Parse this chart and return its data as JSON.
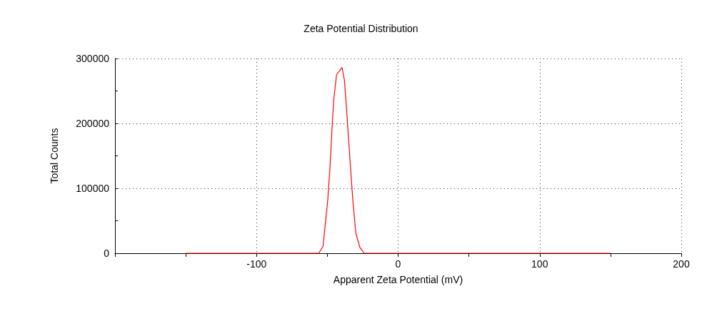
{
  "chart_data": {
    "type": "line",
    "title": "Zeta Potential Distribution",
    "xlabel": "Apparent Zeta Potential (mV)",
    "ylabel": "Total Counts",
    "x": [
      -150,
      -56,
      -53,
      -51.4,
      -49.7,
      -48,
      -46.7,
      -45.5,
      -43.5,
      -39.6,
      -37.9,
      -36.3,
      -33.8,
      -32,
      -29.9,
      -27,
      -24,
      150
    ],
    "series": [
      {
        "color": "#ff0000",
        "values": [
          0,
          0,
          11000,
          46000,
          82000,
          137000,
          192000,
          236000,
          275000,
          286000,
          266000,
          218000,
          137000,
          82000,
          31000,
          9000,
          0,
          0
        ]
      }
    ],
    "xlim": [
      -200,
      200
    ],
    "xticks": [
      {
        "value": -200,
        "label": null
      },
      {
        "value": -150,
        "label": null
      },
      -100,
      {
        "value": -50,
        "label": null
      },
      0,
      {
        "value": 50,
        "label": null
      },
      100,
      {
        "value": 150,
        "label": null
      },
      200
    ],
    "ylim": [
      0,
      300000
    ],
    "yticks": [
      0,
      {
        "value": 50000,
        "label": null
      },
      100000,
      {
        "value": 150000,
        "label": null
      },
      200000,
      {
        "value": 250000,
        "label": null
      },
      300000
    ],
    "grid": true,
    "marker": "none",
    "line_style": "solid"
  }
}
